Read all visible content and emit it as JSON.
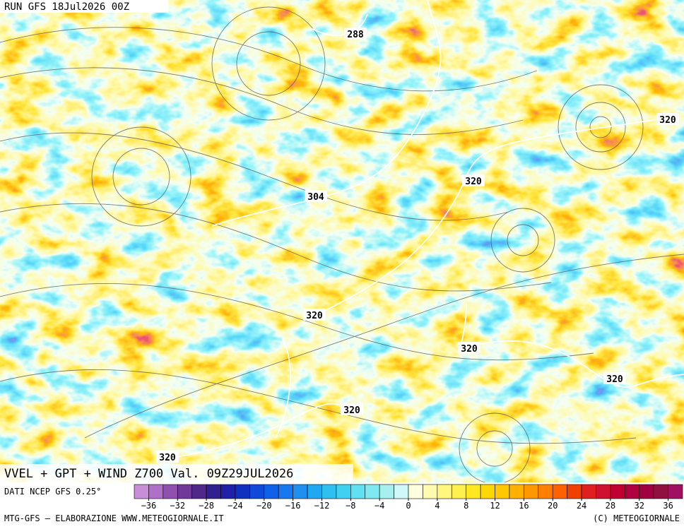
{
  "header": {
    "run": "RUN GFS 18Jul2026 00Z"
  },
  "map": {
    "contour_labels": [
      "288",
      "304",
      "320",
      "320",
      "320",
      "320",
      "320",
      "320",
      "320"
    ]
  },
  "footer": {
    "title": "VVEL + GPT + WIND Z700 Val. 09Z29JUL2026",
    "source": "DATI NCEP GFS 0.25°",
    "credit": "MTG-GFS — ELABORAZIONE WWW.METEOGIORNALE.IT",
    "copyright": "(C) METEOGIORNALE"
  },
  "colorbar": {
    "lim": [
      -38,
      38
    ],
    "ticks": [
      -36,
      -32,
      -28,
      -24,
      -20,
      -16,
      -12,
      -8,
      -4,
      0,
      4,
      8,
      12,
      16,
      20,
      24,
      28,
      32,
      36
    ],
    "tick_labels": [
      "−36",
      "−32",
      "−28",
      "−24",
      "−20",
      "−16",
      "−12",
      "−8",
      "−4",
      "0",
      "4",
      "8",
      "12",
      "16",
      "20",
      "24",
      "28",
      "32",
      "36"
    ],
    "colors": [
      "#c88fd8",
      "#b070c8",
      "#9050b0",
      "#703898",
      "#502888",
      "#302090",
      "#2020a8",
      "#1030c0",
      "#1048d8",
      "#1060e8",
      "#1878f0",
      "#2090f0",
      "#20a8f0",
      "#30c0f0",
      "#40d0f0",
      "#60e0f0",
      "#80e8f0",
      "#a8f0f0",
      "#d0f8f8",
      "#ffffe0",
      "#fffcb0",
      "#fff880",
      "#fff050",
      "#ffe820",
      "#ffd800",
      "#ffc800",
      "#ffb000",
      "#ff9800",
      "#ff8000",
      "#ff6000",
      "#f04000",
      "#e02020",
      "#d01030",
      "#c00030",
      "#b00040",
      "#a00040",
      "#901040",
      "#a01060"
    ]
  }
}
